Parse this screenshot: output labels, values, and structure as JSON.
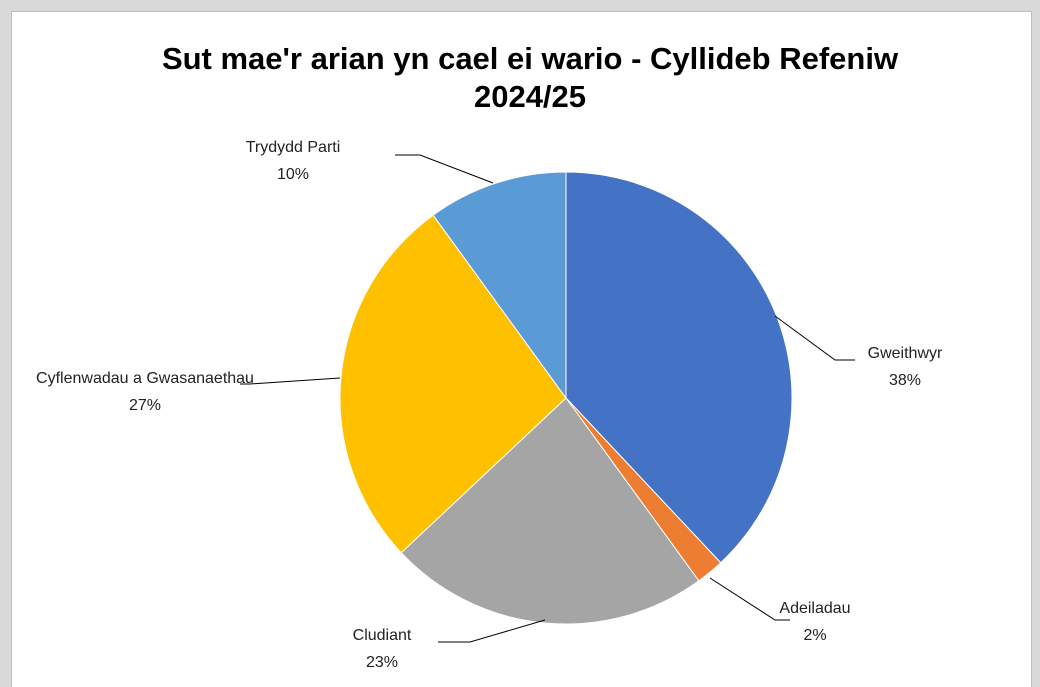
{
  "chart_data": {
    "type": "pie",
    "title": "Sut mae'r arian yn cael ei wario - Cyllideb Refeniw 2024/25",
    "categories": [
      "Gweithwyr",
      "Adeiladau",
      "Cludiant",
      "Cyflenwadau a Gwasanaethau",
      "Trydydd Parti"
    ],
    "values": [
      38,
      2,
      23,
      27,
      10
    ],
    "value_labels": [
      "38%",
      "2%",
      "23%",
      "27%",
      "10%"
    ],
    "colors": [
      "#4472c4",
      "#ed7d31",
      "#a5a5a5",
      "#ffc000",
      "#5b9bd5"
    ]
  }
}
